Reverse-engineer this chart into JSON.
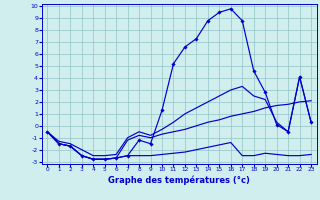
{
  "title": "Graphe des températures (°c)",
  "bg_color": "#d0eeee",
  "grid_color": "#90c4c4",
  "line_color": "#0000cc",
  "x_values": [
    0,
    1,
    2,
    3,
    4,
    5,
    6,
    7,
    8,
    9,
    10,
    11,
    12,
    13,
    14,
    15,
    16,
    17,
    18,
    19,
    20,
    21,
    22,
    23
  ],
  "curve_main": [
    -0.5,
    -1.5,
    -1.7,
    -2.5,
    -2.8,
    -2.8,
    -2.7,
    -2.5,
    -1.2,
    -1.5,
    1.3,
    5.2,
    6.6,
    7.3,
    8.8,
    9.5,
    9.8,
    8.8,
    4.6,
    2.8,
    0.1,
    -0.5,
    4.1,
    0.3
  ],
  "curve_low": [
    -0.5,
    -1.5,
    -1.7,
    -2.5,
    -2.8,
    -2.8,
    -2.7,
    -2.5,
    -2.5,
    -2.5,
    -2.4,
    -2.3,
    -2.2,
    -2.0,
    -1.8,
    -1.6,
    -1.4,
    -2.5,
    -2.5,
    -2.3,
    -2.4,
    -2.5,
    -2.5,
    -2.4
  ],
  "curve_mid": [
    -0.5,
    -1.5,
    -1.7,
    -2.5,
    -2.8,
    -2.8,
    -2.7,
    -1.2,
    -0.8,
    -1.0,
    -0.7,
    -0.5,
    -0.3,
    0.0,
    0.3,
    0.5,
    0.8,
    1.0,
    1.2,
    1.5,
    1.7,
    1.8,
    2.0,
    2.1
  ],
  "curve_high": [
    -0.5,
    -1.3,
    -1.5,
    -2.0,
    -2.5,
    -2.5,
    -2.4,
    -1.0,
    -0.5,
    -0.8,
    -0.3,
    0.3,
    1.0,
    1.5,
    2.0,
    2.5,
    3.0,
    3.3,
    2.5,
    2.2,
    0.3,
    -0.5,
    4.1,
    0.3
  ],
  "ylim": [
    -3,
    10
  ],
  "xlim": [
    -0.5,
    23.5
  ],
  "yticks": [
    -3,
    -2,
    -1,
    0,
    1,
    2,
    3,
    4,
    5,
    6,
    7,
    8,
    9,
    10
  ],
  "xticks": [
    0,
    1,
    2,
    3,
    4,
    5,
    6,
    7,
    8,
    9,
    10,
    11,
    12,
    13,
    14,
    15,
    16,
    17,
    18,
    19,
    20,
    21,
    22,
    23
  ]
}
